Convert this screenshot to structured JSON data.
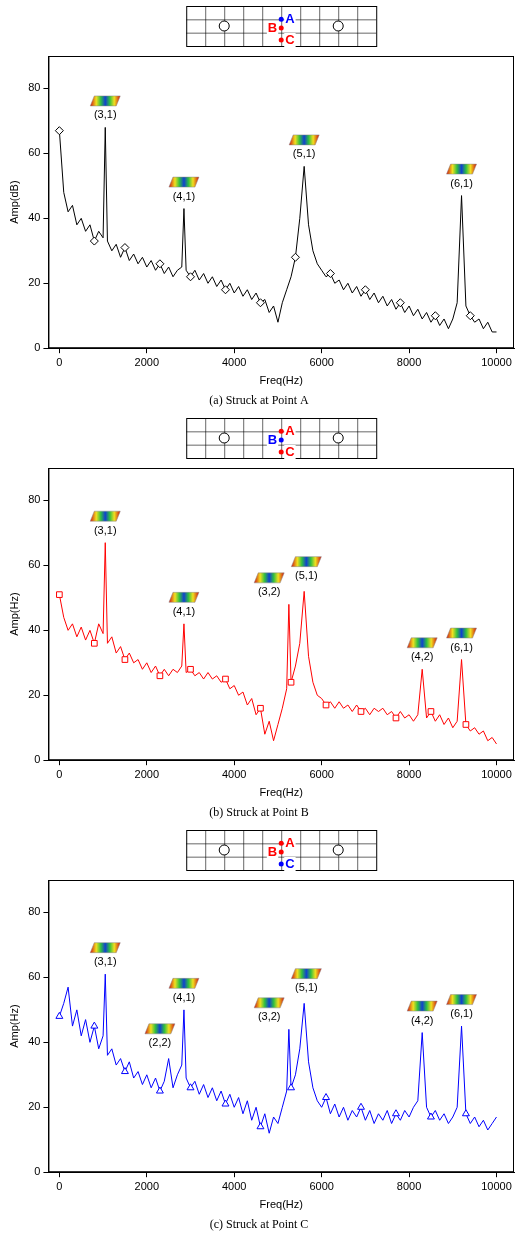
{
  "chart_data": [
    {
      "type": "line",
      "title": "(a) Struck at Point A",
      "x_label": "Freq(Hz)",
      "y_label": "Amp(dB)",
      "xlim": [
        -250,
        10400
      ],
      "xticks": [
        0,
        2000,
        4000,
        6000,
        8000,
        10000
      ],
      "ylim": [
        0,
        90
      ],
      "yticks": [
        0,
        20,
        40,
        60,
        80
      ],
      "grid": false,
      "x": [
        0,
        100,
        200,
        300,
        400,
        500,
        600,
        700,
        800,
        900,
        1000,
        1050,
        1100,
        1200,
        1300,
        1400,
        1500,
        1600,
        1700,
        1800,
        1900,
        2000,
        2100,
        2200,
        2300,
        2400,
        2500,
        2600,
        2700,
        2800,
        2850,
        2900,
        3000,
        3100,
        3200,
        3300,
        3400,
        3500,
        3600,
        3700,
        3800,
        3900,
        4000,
        4100,
        4200,
        4300,
        4400,
        4500,
        4600,
        4700,
        4800,
        4900,
        5000,
        5100,
        5200,
        5300,
        5400,
        5500,
        5600,
        5700,
        5800,
        5900,
        6000,
        6100,
        6200,
        6300,
        6400,
        6500,
        6600,
        6700,
        6800,
        6900,
        7000,
        7100,
        7200,
        7300,
        7400,
        7500,
        7600,
        7700,
        7800,
        7900,
        8000,
        8100,
        8200,
        8300,
        8400,
        8500,
        8600,
        8700,
        8800,
        8900,
        9000,
        9100,
        9200,
        9300,
        9400,
        9500,
        9600,
        9700,
        9800,
        9900,
        10000
      ],
      "series": [
        {
          "color": "#000000",
          "marker": "diamond",
          "values": [
            67,
            48,
            42,
            44,
            38,
            40,
            36,
            38,
            33,
            36,
            34,
            68,
            33,
            30,
            32,
            28,
            31,
            27,
            29,
            26,
            28,
            25,
            27,
            24,
            26,
            23,
            25,
            22,
            24,
            25,
            43,
            24,
            22,
            24,
            21,
            23,
            20,
            22,
            19,
            21,
            18,
            20,
            17,
            19,
            16,
            18,
            15,
            17,
            14,
            15,
            11,
            13,
            8,
            14,
            18,
            22,
            28,
            40,
            56,
            38,
            30,
            26,
            24,
            22,
            23,
            20,
            21,
            18,
            20,
            17,
            19,
            16,
            18,
            15,
            17,
            14,
            16,
            13,
            15,
            12,
            14,
            11,
            13,
            10,
            12,
            9,
            11,
            8,
            10,
            7,
            9,
            6,
            9,
            14,
            47,
            13,
            10,
            8,
            9,
            6,
            8,
            5,
            5
          ]
        }
      ],
      "annotations": [
        {
          "text": "(3,1)",
          "x": 1050,
          "y": 70
        },
        {
          "text": "(4,1)",
          "x": 2850,
          "y": 45
        },
        {
          "text": "(5,1)",
          "x": 5600,
          "y": 58
        },
        {
          "text": "(6,1)",
          "x": 9200,
          "y": 49
        }
      ],
      "schematic": {
        "points": [
          "A",
          "B",
          "C"
        ],
        "colors": [
          "#0000ff",
          "#ff0000",
          "#ff0000"
        ]
      }
    },
    {
      "type": "line",
      "title": "(b) Struck at Point B",
      "x_label": "Freq(Hz)",
      "y_label": "Amp(Hz)",
      "xlim": [
        -250,
        10400
      ],
      "xticks": [
        0,
        2000,
        4000,
        6000,
        8000,
        10000
      ],
      "ylim": [
        0,
        90
      ],
      "yticks": [
        0,
        20,
        40,
        60,
        80
      ],
      "grid": false,
      "x": [
        0,
        100,
        200,
        300,
        400,
        500,
        600,
        700,
        800,
        900,
        1000,
        1050,
        1100,
        1200,
        1300,
        1400,
        1500,
        1600,
        1700,
        1800,
        1900,
        2000,
        2100,
        2200,
        2300,
        2400,
        2500,
        2600,
        2700,
        2800,
        2850,
        2900,
        3000,
        3100,
        3200,
        3300,
        3400,
        3500,
        3600,
        3700,
        3800,
        3900,
        4000,
        4100,
        4200,
        4300,
        4400,
        4500,
        4600,
        4700,
        4800,
        4900,
        5000,
        5100,
        5200,
        5250,
        5300,
        5400,
        5500,
        5600,
        5700,
        5800,
        5900,
        6000,
        6100,
        6200,
        6300,
        6400,
        6500,
        6600,
        6700,
        6800,
        6900,
        7000,
        7100,
        7200,
        7300,
        7400,
        7500,
        7600,
        7700,
        7800,
        7900,
        8000,
        8100,
        8200,
        8300,
        8400,
        8500,
        8600,
        8700,
        8800,
        8900,
        9000,
        9100,
        9200,
        9300,
        9400,
        9500,
        9600,
        9700,
        9800,
        9900,
        10000
      ],
      "series": [
        {
          "color": "#ff0000",
          "marker": "square",
          "values": [
            51,
            44,
            40,
            42,
            38,
            41,
            37,
            40,
            36,
            42,
            39,
            67,
            36,
            38,
            33,
            35,
            31,
            33,
            30,
            31,
            28,
            30,
            27,
            29,
            26,
            28,
            26,
            28,
            27,
            29,
            42,
            27,
            28,
            26,
            27,
            25,
            27,
            25,
            26,
            24,
            25,
            22,
            23,
            20,
            21,
            17,
            19,
            14,
            16,
            8,
            12,
            6,
            11,
            16,
            22,
            48,
            24,
            29,
            36,
            52,
            32,
            24,
            20,
            19,
            17,
            18,
            16,
            18,
            16,
            17,
            15,
            17,
            15,
            16,
            14,
            16,
            15,
            16,
            14,
            15,
            13,
            15,
            13,
            14,
            12,
            14,
            28,
            13,
            15,
            12,
            14,
            11,
            13,
            10,
            12,
            31,
            11,
            9,
            10,
            8,
            9,
            6,
            7,
            5
          ]
        }
      ],
      "annotations": [
        {
          "text": "(3,1)",
          "x": 1050,
          "y": 69
        },
        {
          "text": "(4,1)",
          "x": 2850,
          "y": 44
        },
        {
          "text": "(3,2)",
          "x": 4800,
          "y": 50
        },
        {
          "text": "(5,1)",
          "x": 5650,
          "y": 55
        },
        {
          "text": "(4,2)",
          "x": 8300,
          "y": 30
        },
        {
          "text": "(6,1)",
          "x": 9200,
          "y": 33
        }
      ],
      "schematic": {
        "points": [
          "A",
          "B",
          "C"
        ],
        "colors": [
          "#ff0000",
          "#0000ff",
          "#ff0000"
        ]
      }
    },
    {
      "type": "line",
      "title": "(c) Struck at Point C",
      "x_label": "Freq(Hz)",
      "y_label": "Amp(Hz)",
      "xlim": [
        -250,
        10400
      ],
      "xticks": [
        0,
        2000,
        4000,
        6000,
        8000,
        10000
      ],
      "ylim": [
        0,
        90
      ],
      "yticks": [
        0,
        20,
        40,
        60,
        80
      ],
      "grid": false,
      "x": [
        0,
        100,
        200,
        300,
        400,
        500,
        600,
        700,
        800,
        900,
        1000,
        1050,
        1100,
        1200,
        1300,
        1400,
        1500,
        1600,
        1700,
        1800,
        1900,
        2000,
        2100,
        2200,
        2300,
        2400,
        2500,
        2600,
        2700,
        2800,
        2850,
        2900,
        3000,
        3100,
        3200,
        3300,
        3400,
        3500,
        3600,
        3700,
        3800,
        3900,
        4000,
        4100,
        4200,
        4300,
        4400,
        4500,
        4600,
        4700,
        4800,
        4900,
        5000,
        5100,
        5200,
        5250,
        5300,
        5400,
        5500,
        5600,
        5700,
        5800,
        5900,
        6000,
        6100,
        6200,
        6300,
        6400,
        6500,
        6600,
        6700,
        6800,
        6900,
        7000,
        7100,
        7200,
        7300,
        7400,
        7500,
        7600,
        7700,
        7800,
        7900,
        8000,
        8100,
        8200,
        8300,
        8400,
        8500,
        8600,
        8700,
        8800,
        8900,
        9000,
        9100,
        9200,
        9300,
        9400,
        9500,
        9600,
        9700,
        9800,
        9900,
        10000
      ],
      "series": [
        {
          "color": "#0000ff",
          "marker": "triangle",
          "values": [
            48,
            52,
            57,
            45,
            50,
            42,
            47,
            40,
            45,
            38,
            42,
            61,
            36,
            38,
            33,
            35,
            31,
            34,
            29,
            31,
            27,
            30,
            26,
            29,
            25,
            28,
            35,
            26,
            30,
            33,
            50,
            29,
            26,
            28,
            24,
            27,
            23,
            26,
            22,
            25,
            21,
            24,
            20,
            23,
            18,
            22,
            16,
            20,
            14,
            18,
            12,
            17,
            15,
            20,
            25,
            44,
            26,
            30,
            38,
            52,
            34,
            26,
            22,
            20,
            23,
            18,
            21,
            17,
            20,
            16,
            19,
            17,
            20,
            16,
            19,
            15,
            18,
            16,
            19,
            15,
            18,
            16,
            19,
            17,
            20,
            22,
            43,
            20,
            17,
            19,
            16,
            18,
            15,
            17,
            20,
            45,
            18,
            15,
            17,
            14,
            16,
            13,
            15,
            17
          ]
        }
      ],
      "annotations": [
        {
          "text": "(3,1)",
          "x": 1050,
          "y": 63
        },
        {
          "text": "(2,2)",
          "x": 2300,
          "y": 38
        },
        {
          "text": "(4,1)",
          "x": 2850,
          "y": 52
        },
        {
          "text": "(3,2)",
          "x": 4800,
          "y": 46
        },
        {
          "text": "(5,1)",
          "x": 5650,
          "y": 55
        },
        {
          "text": "(4,2)",
          "x": 8300,
          "y": 45
        },
        {
          "text": "(6,1)",
          "x": 9200,
          "y": 47
        }
      ],
      "schematic": {
        "points": [
          "A",
          "B",
          "C"
        ],
        "colors": [
          "#ff0000",
          "#ff0000",
          "#0000ff"
        ]
      }
    }
  ]
}
